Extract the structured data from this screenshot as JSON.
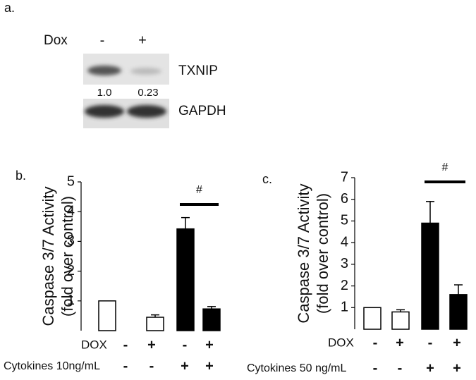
{
  "panel_a": {
    "label": "a.",
    "treatment_label": "Dox",
    "lanes": [
      "-",
      "+"
    ],
    "bands": [
      "TXNIP",
      "GAPDH"
    ],
    "quantification": [
      "1.0",
      "0.23"
    ]
  },
  "chart_data": [
    {
      "type": "bar",
      "panel_label": "b.",
      "ylabel": [
        "Caspase 3/7 Activity",
        "(fold over control)"
      ],
      "values": [
        1.0,
        0.45,
        3.42,
        0.73
      ],
      "errors": [
        0,
        0.08,
        0.38,
        0.08
      ],
      "colors": [
        "#ffffff",
        "#ffffff",
        "#000000",
        "#000000"
      ],
      "ylim": [
        0,
        5
      ],
      "yticks": [
        1,
        2,
        3,
        4,
        5
      ],
      "annotation": "#",
      "rows": [
        {
          "label": "DOX",
          "signs": [
            "-",
            "+",
            "-",
            "+"
          ]
        },
        {
          "label": "Cytokines 10ng/mL",
          "signs": [
            "-",
            "-",
            "+",
            "+"
          ]
        }
      ]
    },
    {
      "type": "bar",
      "panel_label": "c.",
      "ylabel": [
        "Caspase 3/7 Activity",
        "(fold over control)"
      ],
      "values": [
        1.0,
        0.8,
        4.9,
        1.6
      ],
      "errors": [
        0,
        0.1,
        1.0,
        0.45
      ],
      "colors": [
        "#ffffff",
        "#ffffff",
        "#000000",
        "#000000"
      ],
      "ylim": [
        0,
        7
      ],
      "yticks": [
        1,
        2,
        3,
        4,
        5,
        6,
        7
      ],
      "annotation": "#",
      "rows": [
        {
          "label": "DOX",
          "signs": [
            "-",
            "+",
            "-",
            "+"
          ]
        },
        {
          "label": "Cytokines 50 ng/mL",
          "signs": [
            "-",
            "-",
            "+",
            "+"
          ]
        }
      ]
    }
  ]
}
